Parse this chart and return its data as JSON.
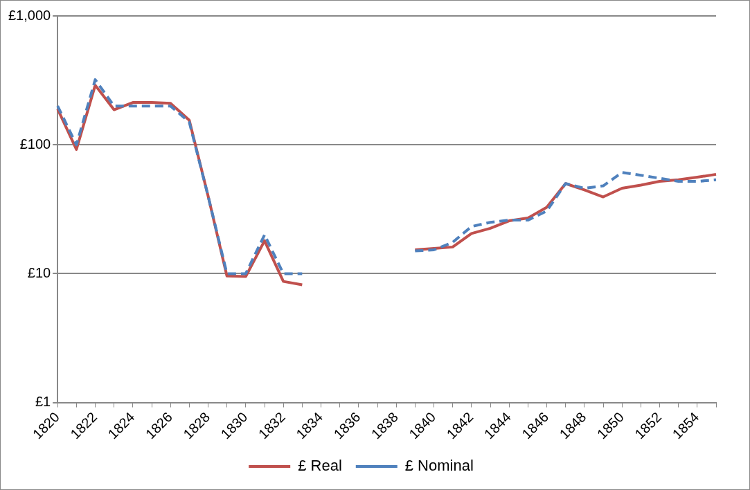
{
  "chart_data": {
    "type": "line",
    "categories": [
      "1820",
      null,
      "1822",
      null,
      "1824",
      null,
      "1826",
      null,
      "1828",
      null,
      "1830",
      null,
      "1832",
      null,
      "1834",
      null,
      "1836",
      null,
      "1838",
      null,
      "1840",
      null,
      "1842",
      null,
      "1844",
      null,
      "1846",
      null,
      "1848",
      null,
      "1850",
      null,
      "1852",
      null,
      "1854",
      null
    ],
    "series": [
      {
        "name": "£ Real",
        "color": "#c0504d",
        "line_style": "solid",
        "values": [
          190,
          92,
          290,
          187,
          213,
          213,
          210,
          155,
          40,
          9.6,
          9.5,
          18,
          8.7,
          8.2,
          null,
          null,
          null,
          null,
          null,
          15.3,
          15.7,
          16.1,
          20.5,
          22.5,
          25.7,
          27,
          32.7,
          50,
          44.6,
          39.4,
          46,
          48.6,
          52,
          53.5,
          56,
          59
        ]
      },
      {
        "name": "£ Nominal",
        "color": "#4f81bd",
        "line_style": "dashed",
        "values": [
          200,
          100,
          320,
          200,
          200,
          200,
          200,
          150,
          40,
          10,
          10,
          20,
          10,
          10,
          null,
          null,
          null,
          null,
          null,
          15,
          15.3,
          17.5,
          23.2,
          25,
          26,
          26,
          30.6,
          50,
          46,
          48,
          61,
          58,
          55,
          52,
          52,
          53.5
        ]
      }
    ],
    "log": "y",
    "ylim": [
      1,
      1000
    ],
    "yticks": [
      {
        "value": 1,
        "label": "£1"
      },
      {
        "value": 10,
        "label": "£10"
      },
      {
        "value": 100,
        "label": "£100"
      },
      {
        "value": 1000,
        "label": "£1,000"
      }
    ],
    "grid": "y",
    "legend": "bottom",
    "marker": "none"
  }
}
